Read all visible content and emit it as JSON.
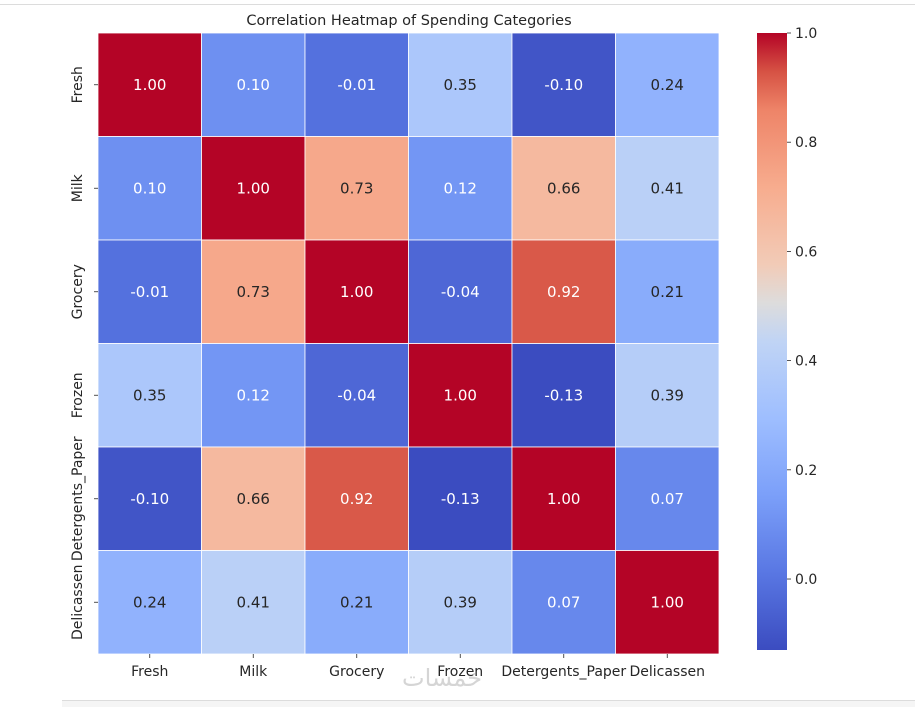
{
  "chart_data": {
    "type": "heatmap",
    "title": "Correlation Heatmap of Spending Categories",
    "rows": [
      "Fresh",
      "Milk",
      "Grocery",
      "Frozen",
      "Detergents_Paper",
      "Delicassen"
    ],
    "columns": [
      "Fresh",
      "Milk",
      "Grocery",
      "Frozen",
      "Detergents_Paper",
      "Delicassen"
    ],
    "values": [
      [
        1.0,
        0.1,
        -0.01,
        0.35,
        -0.1,
        0.24
      ],
      [
        0.1,
        1.0,
        0.73,
        0.12,
        0.66,
        0.41
      ],
      [
        -0.01,
        0.73,
        1.0,
        -0.04,
        0.92,
        0.21
      ],
      [
        0.35,
        0.12,
        -0.04,
        1.0,
        -0.13,
        0.39
      ],
      [
        -0.1,
        0.66,
        0.92,
        -0.13,
        1.0,
        0.07
      ],
      [
        0.24,
        0.41,
        0.21,
        0.39,
        0.07,
        1.0
      ]
    ],
    "cell_labels": [
      [
        "1.00",
        "0.10",
        "-0.01",
        "0.35",
        "-0.10",
        "0.24"
      ],
      [
        "0.10",
        "1.00",
        "0.73",
        "0.12",
        "0.66",
        "0.41"
      ],
      [
        "-0.01",
        "0.73",
        "1.00",
        "-0.04",
        "0.92",
        "0.21"
      ],
      [
        "0.35",
        "0.12",
        "-0.04",
        "1.00",
        "-0.13",
        "0.39"
      ],
      [
        "-0.10",
        "0.66",
        "0.92",
        "-0.13",
        "1.00",
        "0.07"
      ],
      [
        "0.24",
        "0.41",
        "0.21",
        "0.39",
        "0.07",
        "1.00"
      ]
    ],
    "colormap": "coolwarm",
    "vmin": -0.13,
    "vmax": 1.0,
    "colorbar_ticks": [
      0.0,
      0.2,
      0.4,
      0.6,
      0.8,
      1.0
    ],
    "colorbar_tick_labels": [
      "0.0",
      "0.2",
      "0.4",
      "0.6",
      "0.8",
      "1.0"
    ],
    "annotation_format": "0.2f"
  },
  "watermark_text": "خمسات",
  "colors": {
    "grid_line": "#ffffff",
    "text_dark": "#262626",
    "text_light": "#ffffff"
  }
}
